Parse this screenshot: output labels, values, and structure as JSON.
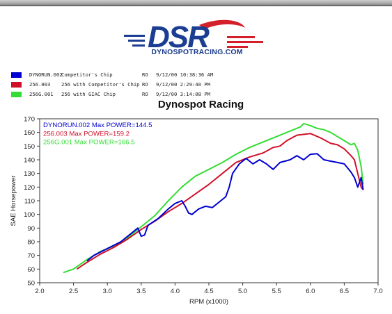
{
  "logo": {
    "text": "DSR",
    "caption": "DYNOSPOTRACING.COM",
    "colors": {
      "blue": "#1b3d92",
      "red": "#d3202a"
    }
  },
  "legend": [
    {
      "id": "DYNORUN.002",
      "desc": "Competitor's Chip",
      "ro": "RO",
      "datetime": "9/12/00 10:38:36 AM",
      "color": "#0000d0"
    },
    {
      "id": "256.003",
      "desc": "256 with Competitor's Chip",
      "ro": "RO",
      "datetime": "9/12/00 2:29:40 PM",
      "color": "#d0102a"
    },
    {
      "id": "256G.001",
      "desc": "256 with GIAC Chip",
      "ro": "RO",
      "datetime": "9/12/00 3:14:08 PM",
      "color": "#33dd33"
    }
  ],
  "chart_data": {
    "type": "line",
    "title": "Dynospot Racing",
    "xlabel": "RPM (x1000)",
    "ylabel": "SAE Horsepower",
    "xlim": [
      2.0,
      7.0
    ],
    "ylim": [
      50,
      170
    ],
    "xticks": [
      "2.0",
      "2.5",
      "3.0",
      "3.5",
      "4.0",
      "4.5",
      "5.0",
      "5.5",
      "6.0",
      "6.5",
      "7.0"
    ],
    "yticks": [
      "50",
      "60",
      "70",
      "80",
      "90",
      "100",
      "110",
      "120",
      "130",
      "140",
      "150",
      "160",
      "170"
    ],
    "grid": false,
    "annotations": [
      {
        "text": "DYNORUN.002  Max POWER=144.5",
        "color": "#0000d0"
      },
      {
        "text": "256.003  Max POWER=159.2",
        "color": "#d0102a"
      },
      {
        "text": "256G.001  Max POWER=166.5",
        "color": "#33dd33"
      }
    ],
    "series": [
      {
        "name": "256G.001",
        "color": "#33dd33",
        "points": [
          [
            2.35,
            57.5
          ],
          [
            2.5,
            60
          ],
          [
            2.7,
            67
          ],
          [
            2.9,
            73
          ],
          [
            3.1,
            77
          ],
          [
            3.3,
            83
          ],
          [
            3.5,
            91
          ],
          [
            3.7,
            99
          ],
          [
            3.9,
            110
          ],
          [
            4.1,
            120
          ],
          [
            4.3,
            128
          ],
          [
            4.5,
            133
          ],
          [
            4.7,
            138
          ],
          [
            4.9,
            144
          ],
          [
            5.1,
            149
          ],
          [
            5.3,
            153
          ],
          [
            5.5,
            157
          ],
          [
            5.7,
            161
          ],
          [
            5.85,
            164
          ],
          [
            5.9,
            166.5
          ],
          [
            6.0,
            165
          ],
          [
            6.1,
            163
          ],
          [
            6.2,
            162
          ],
          [
            6.3,
            160
          ],
          [
            6.4,
            157
          ],
          [
            6.5,
            154
          ],
          [
            6.6,
            151
          ],
          [
            6.65,
            152
          ],
          [
            6.7,
            147
          ],
          [
            6.75,
            135
          ],
          [
            6.78,
            122
          ]
        ]
      },
      {
        "name": "256.003",
        "color": "#d0102a",
        "points": [
          [
            2.55,
            60
          ],
          [
            2.7,
            65
          ],
          [
            2.9,
            71
          ],
          [
            3.1,
            76
          ],
          [
            3.3,
            82
          ],
          [
            3.5,
            89
          ],
          [
            3.7,
            95
          ],
          [
            3.9,
            102
          ],
          [
            4.1,
            108
          ],
          [
            4.3,
            115
          ],
          [
            4.5,
            122
          ],
          [
            4.7,
            130
          ],
          [
            4.9,
            138
          ],
          [
            5.1,
            142
          ],
          [
            5.3,
            145
          ],
          [
            5.45,
            149
          ],
          [
            5.55,
            150
          ],
          [
            5.65,
            154
          ],
          [
            5.8,
            158
          ],
          [
            6.0,
            159.2
          ],
          [
            6.15,
            156
          ],
          [
            6.3,
            152
          ],
          [
            6.4,
            151
          ],
          [
            6.5,
            148
          ],
          [
            6.6,
            143
          ],
          [
            6.65,
            140
          ],
          [
            6.7,
            130
          ],
          [
            6.75,
            120
          ],
          [
            6.78,
            118
          ]
        ]
      },
      {
        "name": "DYNORUN.002",
        "color": "#0000d0",
        "points": [
          [
            2.7,
            66
          ],
          [
            2.8,
            70
          ],
          [
            3.0,
            75
          ],
          [
            3.2,
            80
          ],
          [
            3.35,
            86
          ],
          [
            3.45,
            90
          ],
          [
            3.5,
            84
          ],
          [
            3.55,
            85
          ],
          [
            3.6,
            92
          ],
          [
            3.75,
            97
          ],
          [
            3.9,
            104
          ],
          [
            4.0,
            108
          ],
          [
            4.1,
            110
          ],
          [
            4.15,
            106
          ],
          [
            4.2,
            101
          ],
          [
            4.25,
            100
          ],
          [
            4.35,
            104
          ],
          [
            4.45,
            106
          ],
          [
            4.55,
            105
          ],
          [
            4.65,
            109
          ],
          [
            4.75,
            113
          ],
          [
            4.8,
            120
          ],
          [
            4.85,
            130
          ],
          [
            4.95,
            137
          ],
          [
            5.05,
            141
          ],
          [
            5.15,
            137
          ],
          [
            5.25,
            140
          ],
          [
            5.35,
            137
          ],
          [
            5.45,
            133
          ],
          [
            5.55,
            138
          ],
          [
            5.7,
            140
          ],
          [
            5.8,
            143
          ],
          [
            5.9,
            140
          ],
          [
            6.0,
            144
          ],
          [
            6.1,
            144.5
          ],
          [
            6.2,
            140
          ],
          [
            6.3,
            139
          ],
          [
            6.4,
            138
          ],
          [
            6.5,
            137
          ],
          [
            6.6,
            131
          ],
          [
            6.65,
            127
          ],
          [
            6.7,
            120
          ],
          [
            6.75,
            127
          ],
          [
            6.78,
            118
          ]
        ]
      }
    ]
  }
}
